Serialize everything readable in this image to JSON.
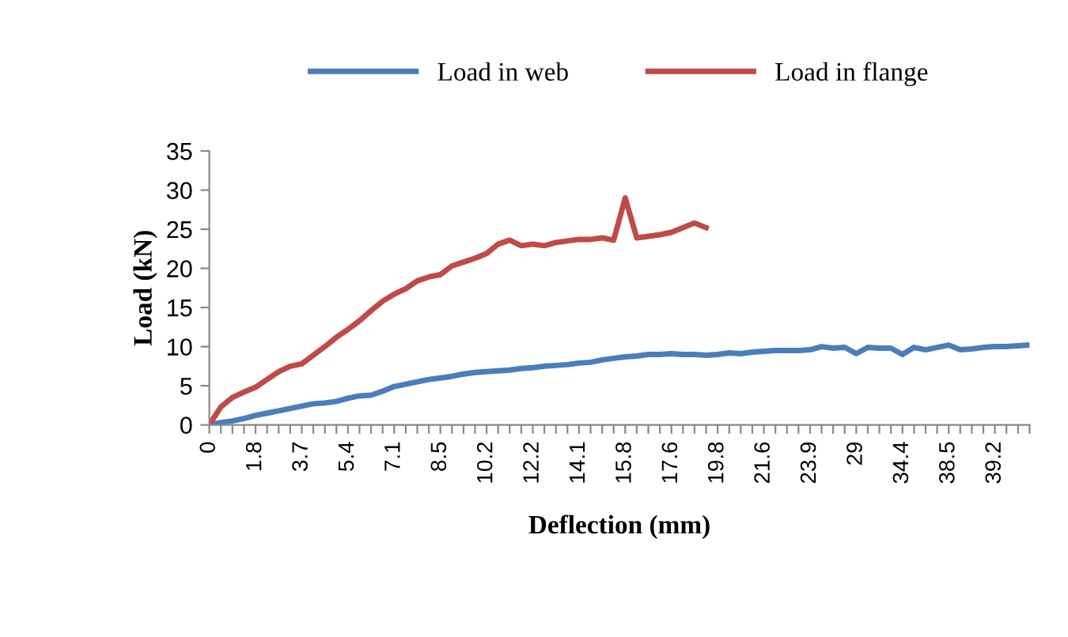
{
  "chart_data": {
    "type": "line",
    "xlabel": "Deflection (mm)",
    "ylabel": "Load (kN)",
    "categories": [
      "0",
      null,
      null,
      null,
      "1.8",
      null,
      null,
      null,
      "3.7",
      null,
      null,
      null,
      "5.4",
      null,
      null,
      null,
      "7.1",
      null,
      null,
      null,
      "8.5",
      null,
      null,
      null,
      "10.2",
      null,
      null,
      null,
      "12.2",
      null,
      null,
      null,
      "14.1",
      null,
      null,
      null,
      "15.8",
      null,
      null,
      null,
      "17.6",
      null,
      null,
      null,
      "19.8",
      null,
      null,
      null,
      "21.6",
      null,
      null,
      null,
      "23.9",
      null,
      null,
      null,
      "29",
      null,
      null,
      null,
      "34.4",
      null,
      null,
      null,
      "38.5",
      null,
      null,
      null,
      "39.2",
      null,
      null,
      null
    ],
    "series": [
      {
        "name": "Load in web",
        "color": "#4a7ebb",
        "values": [
          0,
          0.3,
          0.5,
          0.8,
          1.2,
          1.5,
          1.8,
          2.1,
          2.4,
          2.7,
          2.8,
          3.0,
          3.4,
          3.7,
          3.8,
          4.3,
          4.9,
          5.2,
          5.5,
          5.8,
          6.0,
          6.2,
          6.5,
          6.7,
          6.8,
          6.9,
          7.0,
          7.2,
          7.3,
          7.5,
          7.6,
          7.7,
          7.9,
          8.0,
          8.3,
          8.5,
          8.7,
          8.8,
          9.0,
          9.0,
          9.1,
          9.0,
          9.0,
          8.9,
          9.0,
          9.2,
          9.1,
          9.3,
          9.4,
          9.5,
          9.5,
          9.5,
          9.6,
          10.0,
          9.8,
          9.9,
          9.1,
          9.9,
          9.8,
          9.8,
          9.0,
          9.9,
          9.6,
          9.9,
          10.2,
          9.6,
          9.7,
          9.9,
          10.0,
          10.0,
          10.1,
          10.2
        ]
      },
      {
        "name": "Load in flange",
        "color": "#be4b48",
        "values": [
          0,
          2.3,
          3.5,
          4.2,
          4.8,
          5.8,
          6.8,
          7.5,
          7.8,
          8.9,
          10,
          11.2,
          12.2,
          13.3,
          14.6,
          15.8,
          16.7,
          17.4,
          18.4,
          18.9,
          19.2,
          20.3,
          20.8,
          21.3,
          21.9,
          23.1,
          23.6,
          22.9,
          23.1,
          22.9,
          23.3,
          23.5,
          23.7,
          23.7,
          23.9,
          23.6,
          29,
          23.9,
          24.1,
          24.3,
          24.6,
          25.2,
          25.8,
          25.2,
          null,
          null,
          null,
          null,
          null,
          null,
          null,
          null,
          null,
          null,
          null,
          null,
          null,
          null,
          null,
          null,
          null,
          null,
          null,
          null,
          null,
          null,
          null,
          null,
          null,
          null,
          null,
          null
        ]
      }
    ],
    "ylim": [
      0,
      35
    ],
    "yticks": [
      0,
      5,
      10,
      15,
      20,
      25,
      30,
      35
    ],
    "grid": false,
    "legend": "top",
    "marker": "none",
    "line_style": "solid"
  }
}
